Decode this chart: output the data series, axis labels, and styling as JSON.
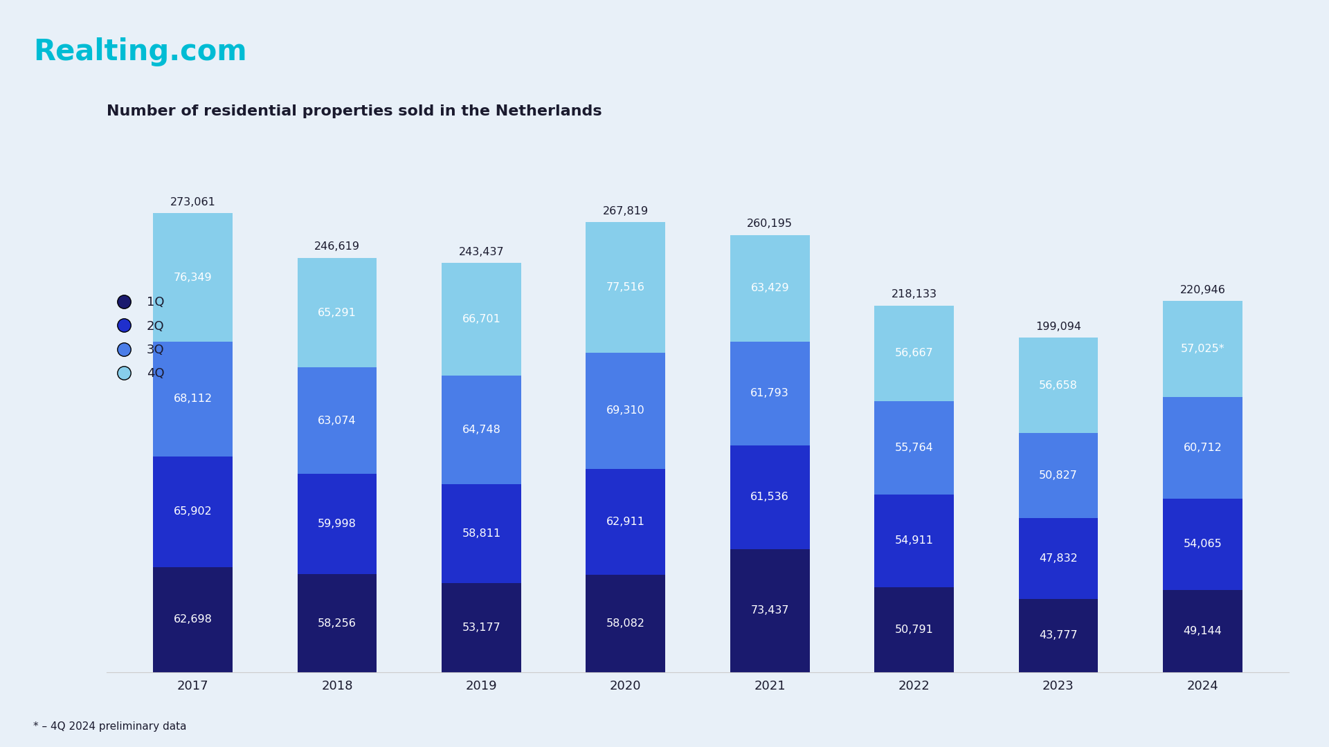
{
  "title": "Number of residential properties sold in the Netherlands",
  "branding": "Realting.com",
  "footnote": "* – 4Q 2024 preliminary data",
  "years": [
    "2017",
    "2018",
    "2019",
    "2020",
    "2021",
    "2022",
    "2023",
    "2024"
  ],
  "q1": [
    62698,
    58256,
    53177,
    58082,
    73437,
    50791,
    43777,
    49144
  ],
  "q2": [
    65902,
    59998,
    58811,
    62911,
    61536,
    54911,
    47832,
    54065
  ],
  "q3": [
    68112,
    63074,
    64748,
    69310,
    61793,
    55764,
    50827,
    60712
  ],
  "q4": [
    76349,
    65291,
    66701,
    77516,
    63429,
    56667,
    56658,
    57025
  ],
  "totals": [
    273061,
    246619,
    243437,
    267819,
    260195,
    218133,
    199094,
    220946
  ],
  "q4_label_2024": "57,025*",
  "colors": {
    "q1": "#1a1a6e",
    "q2": "#1f2fcc",
    "q3": "#4a7de8",
    "q4": "#87ceeb",
    "background": "#e8f0f8",
    "title_color": "#1a1a2e",
    "branding_color": "#00bcd4",
    "text_white": "#ffffff",
    "text_dark": "#1a1a2e",
    "axis_color": "#cccccc"
  },
  "legend_labels": [
    "1Q",
    "2Q",
    "3Q",
    "4Q"
  ],
  "bar_width": 0.55,
  "ylim": [
    0,
    320000
  ],
  "figsize": [
    19.2,
    10.8
  ],
  "dpi": 100
}
